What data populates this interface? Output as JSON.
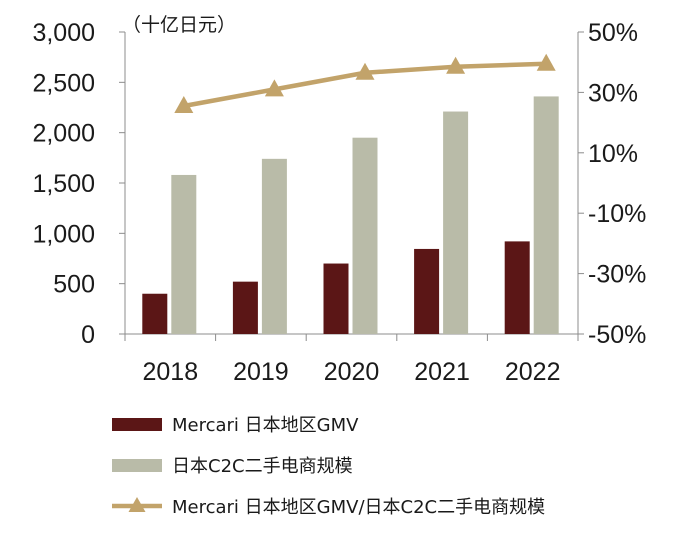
{
  "chart_data": {
    "type": "bar",
    "categories": [
      "2018",
      "2019",
      "2020",
      "2021",
      "2022"
    ],
    "unit_label": "（十亿日元）",
    "series": [
      {
        "name": "Mercari 日本地区GMV",
        "kind": "bar",
        "axis": "left",
        "color": "#5b1616",
        "values": [
          400,
          520,
          700,
          845,
          920
        ]
      },
      {
        "name": "日本C2C二手电商规模",
        "kind": "bar",
        "axis": "left",
        "color": "#b9bba8",
        "values": [
          1580,
          1740,
          1950,
          2210,
          2360
        ]
      },
      {
        "name": "Mercari 日本地区GMV/日本C2C二手电商规模",
        "kind": "line",
        "axis": "right",
        "color": "#c2a36a",
        "marker": "triangle",
        "values": [
          25.5,
          31.0,
          36.5,
          38.5,
          39.5
        ]
      }
    ],
    "left_axis": {
      "min": 0,
      "max": 3000,
      "ticks": [
        0,
        500,
        1000,
        1500,
        2000,
        2500,
        3000
      ],
      "tick_labels": [
        "0",
        "500",
        "1,000",
        "1,500",
        "2,000",
        "2,500",
        "3,000"
      ]
    },
    "right_axis": {
      "min": -50,
      "max": 50,
      "ticks": [
        -50,
        -30,
        -10,
        10,
        30,
        50
      ],
      "tick_labels": [
        "-50%",
        "-30%",
        "-10%",
        "10%",
        "30%",
        "50%"
      ]
    },
    "legend_position": "bottom-left",
    "grid": false
  }
}
